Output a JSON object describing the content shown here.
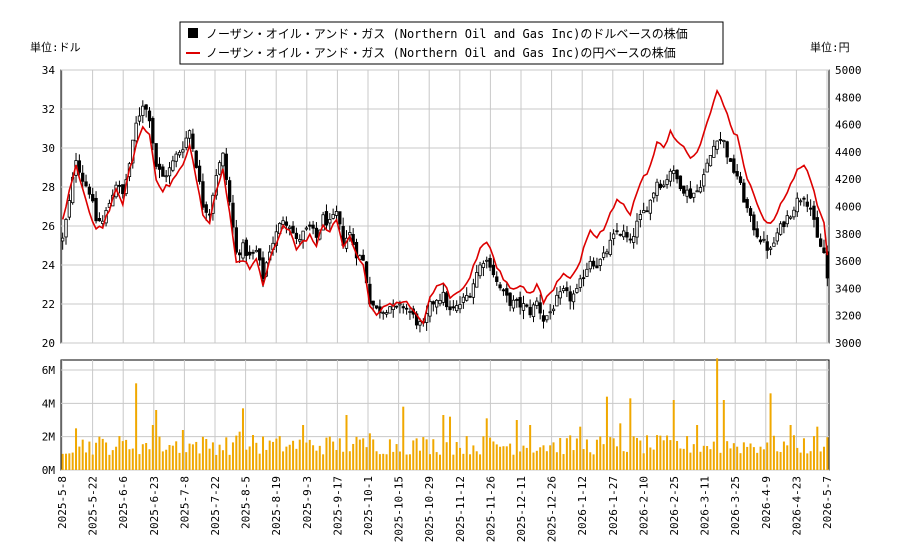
{
  "chart_data": {
    "type": "candlestick+line+volume",
    "legend": [
      {
        "label": "ノーザン・オイル・アンド・ガス (Northern Oil and Gas Inc)のドルベースの株価",
        "color": "#000000",
        "marker": "square"
      },
      {
        "label": "ノーザン・オイル・アンド・ガス (Northern Oil and Gas Inc)の円ベースの株価",
        "color": "#dd0000",
        "marker": "line"
      }
    ],
    "left_unit": "単位:ドル",
    "right_unit": "単位:円",
    "price_axis_left": {
      "min": 20,
      "max": 34,
      "ticks": [
        20,
        22,
        24,
        26,
        28,
        30,
        32,
        34
      ]
    },
    "price_axis_right": {
      "min": 3000,
      "max": 5000,
      "ticks": [
        3000,
        3200,
        3400,
        3600,
        3800,
        4000,
        4200,
        4400,
        4600,
        4800,
        5000
      ]
    },
    "volume_axis": {
      "min": 0,
      "max": 6.6,
      "ticks": [
        {
          "v": 0,
          "label": "0M"
        },
        {
          "v": 2,
          "label": "2M"
        },
        {
          "v": 4,
          "label": "4M"
        },
        {
          "v": 6,
          "label": "6M"
        }
      ]
    },
    "x_tick_labels": [
      "2025-5-8",
      "2025-5-22",
      "2025-6-6",
      "2025-6-23",
      "2025-7-8",
      "2025-7-22",
      "2025-8-5",
      "2025-8-19",
      "2025-9-3",
      "2025-9-17",
      "2025-10-1",
      "2025-10-15",
      "2025-10-29",
      "2025-11-12",
      "2025-11-26",
      "2025-12-11",
      "2025-12-26",
      "2026-1-12",
      "2026-1-27",
      "2026-2-10",
      "2026-2-25",
      "2026-3-11",
      "2026-3-25",
      "2026-4-9",
      "2026-4-23",
      "2026-5-7"
    ],
    "dollar_close_anchors": [
      [
        0,
        25.3
      ],
      [
        2,
        27.2
      ],
      [
        4,
        29.5
      ],
      [
        6,
        28.4
      ],
      [
        8,
        27.8
      ],
      [
        10,
        26.3
      ],
      [
        12,
        26.2
      ],
      [
        14,
        27.2
      ],
      [
        16,
        28.2
      ],
      [
        18,
        27.6
      ],
      [
        20,
        29.2
      ],
      [
        22,
        31.2
      ],
      [
        24,
        32.3
      ],
      [
        26,
        31.6
      ],
      [
        28,
        29.1
      ],
      [
        30,
        28.5
      ],
      [
        32,
        28.9
      ],
      [
        34,
        29.6
      ],
      [
        36,
        30.1
      ],
      [
        38,
        30.9
      ],
      [
        40,
        29.2
      ],
      [
        42,
        27.1
      ],
      [
        44,
        26.7
      ],
      [
        46,
        28.7
      ],
      [
        48,
        29.6
      ],
      [
        50,
        27.2
      ],
      [
        52,
        24.6
      ],
      [
        54,
        24.9
      ],
      [
        56,
        24.4
      ],
      [
        58,
        24.7
      ],
      [
        60,
        23.4
      ],
      [
        62,
        24.8
      ],
      [
        64,
        25.6
      ],
      [
        66,
        26.4
      ],
      [
        68,
        26.1
      ],
      [
        70,
        25.2
      ],
      [
        72,
        25.6
      ],
      [
        74,
        25.9
      ],
      [
        76,
        25.4
      ],
      [
        78,
        26.4
      ],
      [
        80,
        26.1
      ],
      [
        82,
        26.6
      ],
      [
        84,
        25.2
      ],
      [
        86,
        25.6
      ],
      [
        88,
        24.6
      ],
      [
        90,
        24.2
      ],
      [
        92,
        22.2
      ],
      [
        94,
        21.7
      ],
      [
        96,
        21.7
      ],
      [
        98,
        21.9
      ],
      [
        100,
        21.7
      ],
      [
        102,
        21.9
      ],
      [
        104,
        21.6
      ],
      [
        106,
        21.1
      ],
      [
        108,
        20.8
      ],
      [
        110,
        21.9
      ],
      [
        112,
        22.3
      ],
      [
        114,
        22.4
      ],
      [
        116,
        21.6
      ],
      [
        118,
        21.8
      ],
      [
        120,
        22.2
      ],
      [
        122,
        22.6
      ],
      [
        124,
        23.6
      ],
      [
        126,
        24.3
      ],
      [
        128,
        24.1
      ],
      [
        130,
        23.1
      ],
      [
        132,
        22.5
      ],
      [
        134,
        22.1
      ],
      [
        136,
        22.0
      ],
      [
        138,
        21.9
      ],
      [
        140,
        21.6
      ],
      [
        142,
        22.1
      ],
      [
        144,
        21.2
      ],
      [
        146,
        21.6
      ],
      [
        148,
        22.2
      ],
      [
        150,
        22.6
      ],
      [
        152,
        22.3
      ],
      [
        154,
        22.6
      ],
      [
        156,
        23.5
      ],
      [
        158,
        24.3
      ],
      [
        160,
        24.0
      ],
      [
        162,
        24.4
      ],
      [
        164,
        25.1
      ],
      [
        166,
        25.7
      ],
      [
        168,
        25.6
      ],
      [
        170,
        25.1
      ],
      [
        172,
        26.1
      ],
      [
        174,
        26.7
      ],
      [
        176,
        27.3
      ],
      [
        178,
        28.3
      ],
      [
        180,
        28.1
      ],
      [
        182,
        28.9
      ],
      [
        184,
        28.4
      ],
      [
        186,
        27.9
      ],
      [
        188,
        27.6
      ],
      [
        190,
        27.8
      ],
      [
        192,
        28.6
      ],
      [
        194,
        29.6
      ],
      [
        196,
        30.6
      ],
      [
        198,
        30.3
      ],
      [
        200,
        29.1
      ],
      [
        202,
        28.6
      ],
      [
        204,
        27.4
      ],
      [
        206,
        26.3
      ],
      [
        208,
        25.6
      ],
      [
        210,
        25.1
      ],
      [
        212,
        24.7
      ],
      [
        214,
        25.6
      ],
      [
        216,
        26.2
      ],
      [
        218,
        26.7
      ],
      [
        220,
        27.3
      ],
      [
        222,
        27.6
      ],
      [
        224,
        26.9
      ],
      [
        226,
        25.3
      ],
      [
        228,
        24.6
      ],
      [
        229,
        23.3
      ]
    ],
    "yen_close_anchors": [
      [
        0,
        3890
      ],
      [
        2,
        4120
      ],
      [
        4,
        4300
      ],
      [
        6,
        4110
      ],
      [
        8,
        3960
      ],
      [
        10,
        3840
      ],
      [
        12,
        3860
      ],
      [
        14,
        3980
      ],
      [
        16,
        4110
      ],
      [
        18,
        4030
      ],
      [
        20,
        4260
      ],
      [
        22,
        4450
      ],
      [
        24,
        4580
      ],
      [
        26,
        4530
      ],
      [
        28,
        4210
      ],
      [
        30,
        4120
      ],
      [
        32,
        4160
      ],
      [
        34,
        4230
      ],
      [
        36,
        4300
      ],
      [
        38,
        4440
      ],
      [
        40,
        4220
      ],
      [
        42,
        3930
      ],
      [
        44,
        3880
      ],
      [
        46,
        4110
      ],
      [
        48,
        4270
      ],
      [
        50,
        3970
      ],
      [
        52,
        3580
      ],
      [
        54,
        3620
      ],
      [
        56,
        3560
      ],
      [
        58,
        3600
      ],
      [
        60,
        3420
      ],
      [
        62,
        3620
      ],
      [
        64,
        3720
      ],
      [
        66,
        3860
      ],
      [
        68,
        3820
      ],
      [
        70,
        3680
      ],
      [
        72,
        3750
      ],
      [
        74,
        3780
      ],
      [
        76,
        3720
      ],
      [
        78,
        3860
      ],
      [
        80,
        3820
      ],
      [
        82,
        3900
      ],
      [
        84,
        3710
      ],
      [
        86,
        3770
      ],
      [
        88,
        3640
      ],
      [
        90,
        3570
      ],
      [
        92,
        3280
      ],
      [
        94,
        3220
      ],
      [
        96,
        3250
      ],
      [
        98,
        3300
      ],
      [
        100,
        3280
      ],
      [
        102,
        3320
      ],
      [
        104,
        3260
      ],
      [
        106,
        3190
      ],
      [
        108,
        3160
      ],
      [
        110,
        3320
      ],
      [
        112,
        3410
      ],
      [
        114,
        3450
      ],
      [
        116,
        3330
      ],
      [
        118,
        3360
      ],
      [
        120,
        3420
      ],
      [
        122,
        3490
      ],
      [
        124,
        3620
      ],
      [
        126,
        3740
      ],
      [
        128,
        3700
      ],
      [
        130,
        3570
      ],
      [
        132,
        3480
      ],
      [
        134,
        3420
      ],
      [
        136,
        3400
      ],
      [
        138,
        3400
      ],
      [
        140,
        3360
      ],
      [
        142,
        3430
      ],
      [
        144,
        3300
      ],
      [
        146,
        3360
      ],
      [
        148,
        3450
      ],
      [
        150,
        3520
      ],
      [
        152,
        3480
      ],
      [
        154,
        3530
      ],
      [
        156,
        3680
      ],
      [
        158,
        3810
      ],
      [
        160,
        3780
      ],
      [
        162,
        3830
      ],
      [
        164,
        3940
      ],
      [
        166,
        4040
      ],
      [
        168,
        4030
      ],
      [
        170,
        3940
      ],
      [
        172,
        4110
      ],
      [
        174,
        4210
      ],
      [
        176,
        4300
      ],
      [
        178,
        4460
      ],
      [
        180,
        4430
      ],
      [
        182,
        4560
      ],
      [
        184,
        4480
      ],
      [
        186,
        4420
      ],
      [
        188,
        4360
      ],
      [
        190,
        4400
      ],
      [
        192,
        4520
      ],
      [
        194,
        4690
      ],
      [
        196,
        4860
      ],
      [
        198,
        4750
      ],
      [
        200,
        4580
      ],
      [
        202,
        4520
      ],
      [
        204,
        4280
      ],
      [
        206,
        4140
      ],
      [
        208,
        4010
      ],
      [
        210,
        3920
      ],
      [
        212,
        3860
      ],
      [
        214,
        3970
      ],
      [
        216,
        4070
      ],
      [
        218,
        4150
      ],
      [
        220,
        4260
      ],
      [
        222,
        4320
      ],
      [
        224,
        4200
      ],
      [
        226,
        3990
      ],
      [
        228,
        3880
      ],
      [
        229,
        3660
      ]
    ],
    "volume_millions_typical": 1.5,
    "volume_spikes": [
      [
        4,
        2.5
      ],
      [
        22,
        5.2
      ],
      [
        27,
        2.7
      ],
      [
        28,
        3.6
      ],
      [
        36,
        2.4
      ],
      [
        53,
        2.3
      ],
      [
        54,
        3.7
      ],
      [
        57,
        2.1
      ],
      [
        72,
        2.7
      ],
      [
        85,
        3.3
      ],
      [
        92,
        2.2
      ],
      [
        102,
        3.8
      ],
      [
        114,
        3.3
      ],
      [
        116,
        3.2
      ],
      [
        127,
        3.1
      ],
      [
        136,
        3.0
      ],
      [
        140,
        2.7
      ],
      [
        155,
        2.6
      ],
      [
        163,
        4.4
      ],
      [
        167,
        2.8
      ],
      [
        170,
        4.3
      ],
      [
        183,
        4.2
      ],
      [
        190,
        2.7
      ],
      [
        196,
        6.7
      ],
      [
        198,
        4.2
      ],
      [
        212,
        4.6
      ],
      [
        218,
        2.7
      ],
      [
        226,
        2.6
      ]
    ],
    "n_days": 230
  }
}
